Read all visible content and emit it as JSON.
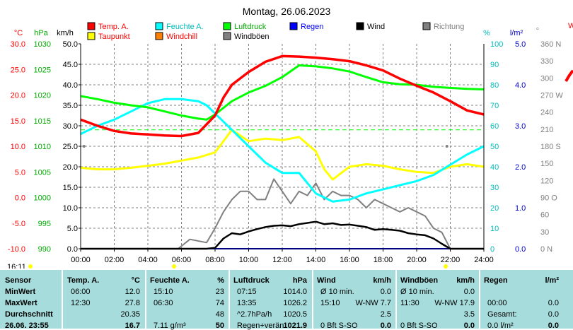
{
  "title": "Montag, 26.06.2023",
  "colors": {
    "temp": "#ff0000",
    "humidity": "#00ffff",
    "pressure": "#00ff00",
    "rain": "#0000ff",
    "wind": "#000000",
    "direction": "#808080",
    "dewpoint": "#ffff00",
    "windchill": "#ff8000",
    "gust": "#808080",
    "axis_red": "#ff0000",
    "axis_green": "#00aa00",
    "axis_cyan": "#00bbbb",
    "axis_blue": "#0000cc",
    "table_bg": "#a6dcdc"
  },
  "legend": [
    {
      "label": "Temp. A.",
      "color": "#ff0000",
      "text_color": "#ff0000"
    },
    {
      "label": "Taupunkt",
      "color": "#ffff00",
      "text_color": "#ff0000"
    },
    {
      "label": "Feuchte A.",
      "color": "#00ffff",
      "text_color": "#00bbbb"
    },
    {
      "label": "Windchill",
      "color": "#ff8000",
      "text_color": "#ff0000"
    },
    {
      "label": "Luftdruck",
      "color": "#00ff00",
      "text_color": "#00aa00"
    },
    {
      "label": "Windböen",
      "color": "#808080",
      "text_color": "#000000"
    },
    {
      "label": "Regen",
      "color": "#0000ff",
      "text_color": "#0000ff"
    },
    {
      "label": "Wind",
      "color": "#000000",
      "text_color": "#000000"
    },
    {
      "label": "Richtung",
      "color": "#808080",
      "text_color": "#808080"
    }
  ],
  "axis_units": {
    "temp": "°C",
    "pressure": "hPa",
    "wind": "km/h",
    "humidity": "%",
    "rain": "l/m²",
    "direction": "°",
    "right_partial": "W"
  },
  "time_label": "16:11",
  "chart_data": {
    "type": "line",
    "title": "Montag, 26.06.2023",
    "x_ticks": [
      "00:00",
      "02:00",
      "04:00",
      "06:00",
      "08:00",
      "10:00",
      "12:00",
      "14:00",
      "16:00",
      "18:00",
      "20:00",
      "22:00",
      "24:00"
    ],
    "xlim": [
      0,
      24
    ],
    "axes": {
      "temp": {
        "ticks": [
          "30.0",
          "25.0",
          "20.0",
          "15.0",
          "10.0",
          "5.0",
          "0.0",
          "-5.0",
          "-10.0"
        ],
        "range": [
          -10,
          30
        ]
      },
      "pressure": {
        "ticks": [
          "1030",
          "1025",
          "1020",
          "1015",
          "1010",
          "1005",
          "1000",
          "995",
          "990"
        ],
        "range": [
          990,
          1030
        ]
      },
      "wind": {
        "ticks": [
          "50.0",
          "45.0",
          "40.0",
          "35.0",
          "30.0",
          "25.0",
          "20.0",
          "15.0",
          "10.0",
          "5.0",
          "0.0"
        ],
        "range": [
          0,
          50
        ]
      },
      "humidity": {
        "ticks": [
          "100",
          "90",
          "80",
          "70",
          "60",
          "50",
          "40",
          "30",
          "20",
          "10",
          "0"
        ],
        "range": [
          0,
          100
        ]
      },
      "rain": {
        "ticks": [
          "5.0",
          "4.0",
          "3.0",
          "2.0",
          "1.0",
          "0.0"
        ],
        "range": [
          0,
          5
        ]
      },
      "direction": {
        "ticks": [
          "360 N",
          "330",
          "300",
          "270 W",
          "240",
          "210",
          "180 S",
          "150",
          "120",
          "90 O",
          "60",
          "30",
          "0 N"
        ],
        "range": [
          0,
          360
        ]
      }
    },
    "series": [
      {
        "name": "Temp. A.",
        "axis": "temp",
        "x": [
          0,
          1,
          2,
          3,
          4,
          5,
          6,
          7,
          8,
          8.5,
          9,
          10,
          11,
          12,
          13,
          14,
          15,
          16,
          17,
          18,
          19,
          20,
          21,
          22,
          23,
          24
        ],
        "values": [
          15.2,
          14.0,
          13.0,
          12.5,
          12.3,
          12.1,
          12.0,
          12.6,
          16.0,
          19.5,
          22.0,
          24.5,
          26.5,
          27.6,
          27.5,
          27.3,
          27.0,
          26.6,
          25.8,
          24.8,
          23.2,
          21.8,
          20.5,
          18.8,
          17.0,
          16.2
        ]
      },
      {
        "name": "Luftdruck",
        "axis": "pressure",
        "x": [
          0,
          1,
          2,
          3,
          4,
          5,
          6,
          7,
          7.5,
          8,
          9,
          10,
          11,
          12,
          13,
          14,
          15,
          16,
          17,
          18,
          19,
          20,
          21,
          22,
          23,
          24
        ],
        "values": [
          1019.8,
          1019.2,
          1018.5,
          1018.0,
          1017.6,
          1016.8,
          1016.0,
          1015.4,
          1015.2,
          1016.2,
          1018.8,
          1020.5,
          1021.8,
          1023.5,
          1025.8,
          1025.6,
          1025.2,
          1024.6,
          1023.5,
          1022.5,
          1022.1,
          1022.0,
          1021.6,
          1021.4,
          1021.2,
          1021.1
        ]
      },
      {
        "name": "Feuchte A.",
        "axis": "humidity",
        "x": [
          0,
          1,
          2,
          3,
          4,
          5,
          6,
          7,
          7.5,
          8,
          8.5,
          9,
          10,
          11,
          12,
          13,
          14,
          15,
          16,
          17,
          18,
          19,
          20,
          21,
          22,
          23,
          24
        ],
        "values": [
          56,
          60,
          63,
          67,
          71,
          73,
          73,
          72,
          70,
          66,
          62,
          58,
          50,
          42,
          37,
          37,
          27,
          23,
          24,
          27,
          29,
          31,
          33,
          36,
          41,
          46,
          50
        ]
      },
      {
        "name": "Taupunkt",
        "axis": "temp",
        "x": [
          0,
          1,
          2,
          3,
          4,
          5,
          6,
          7,
          8,
          8.5,
          9,
          10,
          11,
          12,
          13,
          14,
          14.5,
          15,
          16,
          17,
          18,
          19,
          20,
          21,
          22,
          23,
          24
        ],
        "values": [
          5.8,
          5.5,
          5.5,
          5.8,
          6.2,
          6.6,
          7.2,
          7.8,
          8.8,
          11.0,
          13.2,
          11.0,
          11.5,
          11.2,
          11.8,
          9.0,
          5.5,
          3.5,
          6.0,
          6.5,
          6.2,
          5.5,
          5.0,
          4.8,
          6.0,
          6.5,
          6.0
        ]
      },
      {
        "name": "Windböen",
        "axis": "wind",
        "x": [
          0,
          3,
          5.8,
          6.5,
          7.5,
          8,
          8.5,
          9,
          9.5,
          10,
          10.5,
          11,
          11.5,
          12,
          12.5,
          13,
          13.5,
          14,
          14.5,
          15,
          15.5,
          16,
          16.5,
          17,
          17.5,
          18,
          18.5,
          19,
          19.5,
          20,
          20.5,
          21,
          21.5,
          22,
          23,
          24
        ],
        "values": [
          0,
          0,
          0,
          2.3,
          1.5,
          5,
          9,
          12,
          14,
          14,
          12,
          12,
          17,
          14,
          11,
          14,
          13,
          16,
          12,
          14,
          13,
          13,
          12,
          10,
          12,
          11,
          10,
          9,
          10,
          9,
          8,
          5,
          4,
          0,
          0,
          0
        ]
      },
      {
        "name": "Wind",
        "axis": "wind",
        "x": [
          0,
          6,
          7.5,
          8,
          8.5,
          9,
          9.5,
          10,
          10.5,
          11,
          11.5,
          12,
          12.5,
          13,
          13.5,
          14,
          14.5,
          15,
          15.5,
          16,
          16.5,
          17,
          17.5,
          18,
          18.5,
          19,
          19.5,
          20,
          20.5,
          21,
          21.5,
          22,
          24
        ],
        "values": [
          0,
          0,
          0,
          0.2,
          2.5,
          3.8,
          3.5,
          4.2,
          4.8,
          5.3,
          5.6,
          5.7,
          5.5,
          6.0,
          6.3,
          6.6,
          6.0,
          6.2,
          5.8,
          5.9,
          5.6,
          5.3,
          4.6,
          4.8,
          4.6,
          4.4,
          3.8,
          3.5,
          3.3,
          2.5,
          1.2,
          0,
          0
        ]
      },
      {
        "name": "Regen",
        "axis": "rain",
        "x": [
          0,
          24
        ],
        "values": [
          0,
          0
        ]
      }
    ],
    "reference_lines": [
      {
        "axis": "humidity",
        "value": 58,
        "color": "#00ff00"
      }
    ],
    "direction_points": [
      0.2,
      21.8
    ]
  },
  "table": {
    "columns": [
      {
        "label": "Sensor",
        "unit": ""
      },
      {
        "label": "Temp. A.",
        "unit": "°C"
      },
      {
        "label": "Feuchte A.",
        "unit": "%"
      },
      {
        "label": "Luftdruck",
        "unit": "hPa"
      },
      {
        "label": "Wind",
        "unit": "km/h"
      },
      {
        "label": "Windböen",
        "unit": "km/h"
      },
      {
        "label": "Regen",
        "unit": "l/m²"
      }
    ],
    "row_labels": [
      "MinWert",
      "MaxWert",
      "Durchschnitt",
      "26.06. 23:55"
    ],
    "temp": [
      [
        "06:00",
        "12.0"
      ],
      [
        "12:30",
        "27.8"
      ],
      [
        "",
        "20.35"
      ],
      [
        "",
        "16.7"
      ]
    ],
    "humidity": [
      [
        "15:10",
        "23"
      ],
      [
        "06:30",
        "74"
      ],
      [
        "",
        "48"
      ],
      [
        "7.11 g/m³",
        "50"
      ]
    ],
    "pressure": [
      [
        "07:15",
        "1014.0"
      ],
      [
        "13:35",
        "1026.2"
      ],
      [
        "^2.7hPa/h",
        "1020.5"
      ],
      [
        "Regen+verän",
        "1021.9"
      ]
    ],
    "wind": [
      [
        "Ø 10 min.",
        "0.0"
      ],
      [
        "15:10",
        "W-NW 7.7"
      ],
      [
        "",
        "2.5"
      ],
      [
        "0 Bft S-SO",
        "0.0"
      ]
    ],
    "gust": [
      [
        "Ø 10 min.",
        "0.0"
      ],
      [
        "11:30",
        "W-NW 17.9"
      ],
      [
        "",
        "3.5"
      ],
      [
        "0 Bft S-SO",
        "0.0"
      ]
    ],
    "rain": [
      [
        "",
        ""
      ],
      [
        "00:00",
        "0.0"
      ],
      [
        "Gesamt:",
        "0.0"
      ],
      [
        "0.0 l/m²",
        "0.0"
      ]
    ]
  }
}
